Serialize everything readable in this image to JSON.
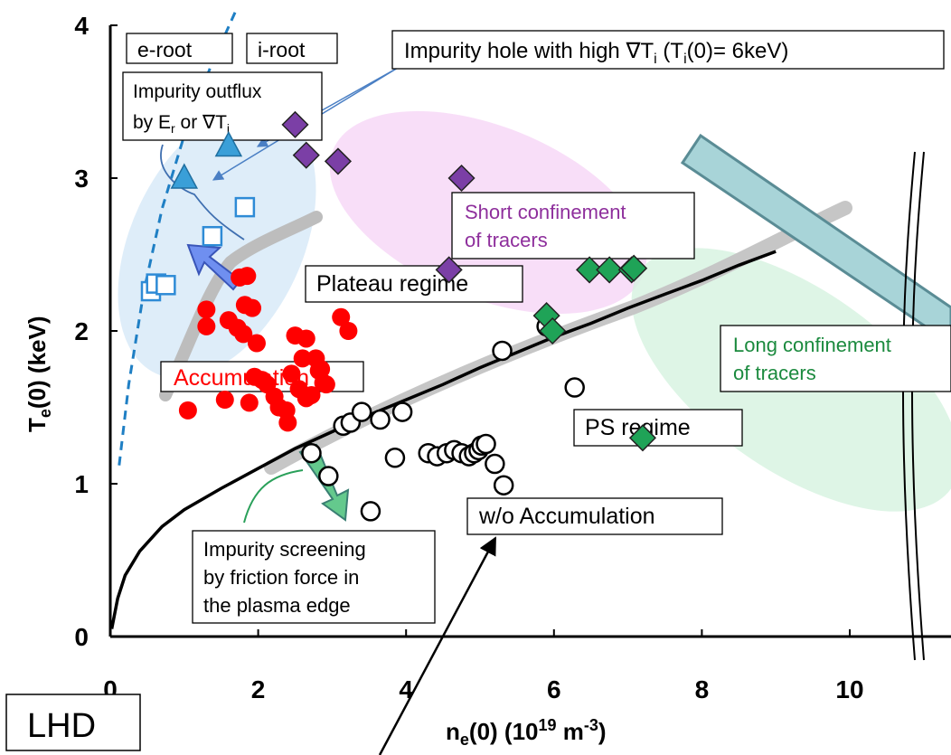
{
  "chart_data": {
    "type": "scatter",
    "title": "",
    "xlabel": {
      "base": "n",
      "sub": "e",
      "rest": "(0) (10",
      "sup": "19",
      "unit": " m",
      "unit_sup": "-3",
      "close": ")"
    },
    "ylabel": {
      "base": "T",
      "sub": "e",
      "rest": "(0) (keV)"
    },
    "xlim": [
      0,
      10
    ],
    "ylim": [
      0,
      4
    ],
    "xticks": [
      "0",
      "2",
      "4",
      "6",
      "8",
      "10"
    ],
    "yticks": [
      "0",
      "1",
      "2",
      "3",
      "4"
    ],
    "grid": false,
    "device_label": "LHD",
    "series": [
      {
        "marker": "filled-circle",
        "color": "#ff0000",
        "points": [
          [
            1.05,
            1.48
          ],
          [
            1.3,
            2.14
          ],
          [
            1.3,
            2.03
          ],
          [
            1.55,
            1.55
          ],
          [
            1.6,
            2.07
          ],
          [
            1.72,
            2.02
          ],
          [
            1.75,
            2.35
          ],
          [
            1.8,
            1.98
          ],
          [
            1.82,
            2.17
          ],
          [
            1.85,
            2.36
          ],
          [
            1.88,
            1.53
          ],
          [
            1.92,
            2.15
          ],
          [
            1.95,
            1.7
          ],
          [
            1.98,
            1.92
          ],
          [
            2.05,
            1.68
          ],
          [
            2.12,
            1.65
          ],
          [
            2.22,
            1.57
          ],
          [
            2.28,
            1.5
          ],
          [
            2.38,
            1.48
          ],
          [
            2.45,
            1.72
          ],
          [
            2.5,
            1.97
          ],
          [
            2.55,
            1.62
          ],
          [
            2.6,
            1.82
          ],
          [
            2.65,
            1.95
          ],
          [
            2.72,
            1.58
          ],
          [
            2.78,
            1.82
          ],
          [
            2.82,
            1.74
          ],
          [
            2.88,
            1.66
          ],
          [
            2.92,
            1.65
          ],
          [
            3.12,
            2.09
          ],
          [
            3.22,
            2.0
          ],
          [
            2.4,
            1.4
          ],
          [
            2.65,
            1.56
          ],
          [
            2.85,
            1.75
          ]
        ]
      },
      {
        "marker": "open-circle",
        "color": "#000000",
        "points": [
          [
            2.72,
            1.2
          ],
          [
            2.95,
            1.05
          ],
          [
            3.15,
            1.38
          ],
          [
            3.25,
            1.4
          ],
          [
            3.4,
            1.47
          ],
          [
            3.52,
            0.82
          ],
          [
            3.65,
            1.42
          ],
          [
            3.85,
            1.17
          ],
          [
            3.95,
            1.47
          ],
          [
            4.3,
            1.2
          ],
          [
            4.42,
            1.18
          ],
          [
            4.55,
            1.2
          ],
          [
            4.65,
            1.22
          ],
          [
            4.75,
            1.2
          ],
          [
            4.85,
            1.18
          ],
          [
            4.92,
            1.2
          ],
          [
            4.98,
            1.22
          ],
          [
            5.02,
            1.25
          ],
          [
            5.08,
            1.26
          ],
          [
            5.2,
            1.13
          ],
          [
            5.32,
            0.99
          ],
          [
            5.3,
            1.87
          ],
          [
            5.9,
            2.03
          ],
          [
            6.28,
            1.63
          ]
        ]
      },
      {
        "marker": "open-square",
        "color": "#2e8bd6",
        "points": [
          [
            0.55,
            2.26
          ],
          [
            0.62,
            2.31
          ],
          [
            0.75,
            2.3
          ],
          [
            1.38,
            2.62
          ],
          [
            1.82,
            2.81
          ]
        ]
      },
      {
        "marker": "filled-triangle",
        "color": "#3a9fd8",
        "points": [
          [
            1.0,
            3.0
          ],
          [
            1.6,
            3.21
          ]
        ]
      },
      {
        "marker": "filled-diamond",
        "color": "#7b3fa6",
        "points": [
          [
            2.5,
            3.35
          ],
          [
            2.65,
            3.15
          ],
          [
            3.08,
            3.11
          ],
          [
            4.58,
            2.4
          ],
          [
            4.75,
            3.0
          ]
        ]
      },
      {
        "marker": "filled-diamond",
        "color": "#1fa357",
        "points": [
          [
            5.9,
            2.1
          ],
          [
            5.98,
            2.0
          ],
          [
            6.48,
            2.4
          ],
          [
            6.75,
            2.4
          ],
          [
            7.05,
            2.4
          ],
          [
            7.08,
            2.41
          ],
          [
            7.2,
            1.3
          ]
        ]
      }
    ],
    "annotations": [
      {
        "id": "e-root",
        "text": "e-root"
      },
      {
        "id": "i-root",
        "text": "i-root"
      },
      {
        "id": "impurity-hole",
        "text": "Impurity hole with high ∇T",
        "sub": "i",
        "open": " (T",
        "sub2": "i",
        "close": "(0)= 6keV)"
      },
      {
        "id": "outflux",
        "line1": "Impurity outflux",
        "line2_pre": "by E",
        "line2_sub": "r",
        "line2_mid": " or ∇T",
        "line2_sub2": "i"
      },
      {
        "id": "short-conf",
        "line1": "Short confinement",
        "line2": "of tracers",
        "color": "#8e2f9c"
      },
      {
        "id": "plateau",
        "text": "Plateau regime"
      },
      {
        "id": "accumulation",
        "text": "Accumulation",
        "color": "#ff0000"
      },
      {
        "id": "long-conf",
        "line1": "Long confinement",
        "line2": "of tracers",
        "color": "#1b8a3e"
      },
      {
        "id": "ps-regime",
        "text": "PS regime"
      },
      {
        "id": "wo-acc",
        "text": "w/o Accumulation"
      },
      {
        "id": "screening",
        "line1": "Impurity screening",
        "line2": "by friction force in",
        "line3": "the plasma edge"
      }
    ],
    "curves": {
      "black_boundary": [
        [
          0.02,
          0.05
        ],
        [
          0.1,
          0.25
        ],
        [
          0.2,
          0.4
        ],
        [
          0.4,
          0.56
        ],
        [
          0.7,
          0.72
        ],
        [
          1.0,
          0.83
        ],
        [
          1.5,
          0.97
        ],
        [
          2.0,
          1.1
        ],
        [
          2.5,
          1.23
        ],
        [
          3.0,
          1.34
        ],
        [
          3.5,
          1.45
        ],
        [
          4.0,
          1.55
        ],
        [
          4.5,
          1.65
        ],
        [
          5.0,
          1.76
        ],
        [
          5.5,
          1.86
        ],
        [
          6.0,
          1.96
        ],
        [
          6.5,
          2.05
        ],
        [
          7.0,
          2.15
        ],
        [
          7.5,
          2.24
        ],
        [
          8.0,
          2.33
        ],
        [
          8.5,
          2.43
        ],
        [
          9.0,
          2.52
        ]
      ],
      "eroot_dashed": [
        [
          0.12,
          1.12
        ],
        [
          0.25,
          1.65
        ],
        [
          0.45,
          2.25
        ],
        [
          0.7,
          2.8
        ],
        [
          1.0,
          3.28
        ],
        [
          1.35,
          3.72
        ],
        [
          1.72,
          4.12
        ]
      ]
    }
  }
}
